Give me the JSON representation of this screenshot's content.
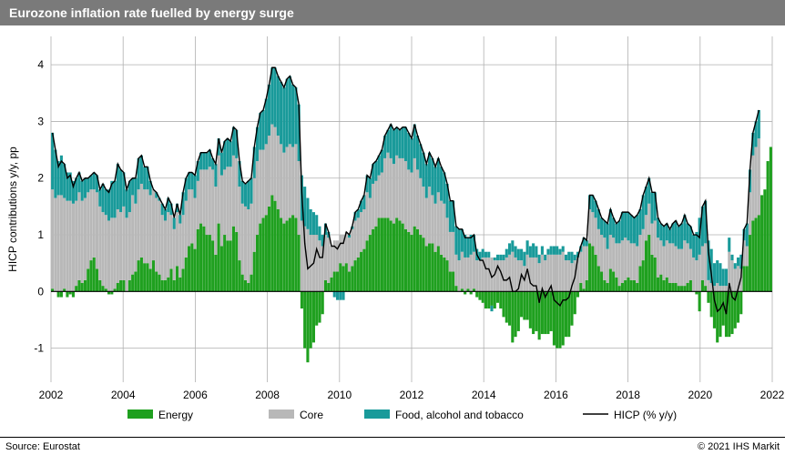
{
  "title": "Eurozone inflation rate fuelled by energy surge",
  "source": "Source: Eurostat",
  "copyright": "© 2021 IHS Markit",
  "chart": {
    "type": "stacked-bar+line",
    "y_axis_label": "HICP contributions y/y, pp",
    "xlim": [
      2002,
      2022
    ],
    "ylim": [
      -1.6,
      4.5
    ],
    "y_ticks": [
      -1,
      0,
      1,
      2,
      3,
      4
    ],
    "x_ticks": [
      2002,
      2004,
      2006,
      2008,
      2010,
      2012,
      2014,
      2016,
      2018,
      2020,
      2022
    ],
    "background_color": "#ffffff",
    "grid_color": "#b0b0b0",
    "title_bg": "#7a7a7a",
    "title_color": "#ffffff",
    "legend_items": [
      {
        "label": "Energy",
        "color": "#1fa01f",
        "kind": "box"
      },
      {
        "label": "Core",
        "color": "#b8b8b8",
        "kind": "box"
      },
      {
        "label": "Food, alcohol and tobacco",
        "color": "#199a9a",
        "kind": "box"
      },
      {
        "label": "HICP (% y/y)",
        "color": "#000000",
        "kind": "line"
      }
    ],
    "start_year": 2002,
    "series": {
      "energy": [
        0.05,
        0.0,
        -0.1,
        -0.1,
        0.05,
        -0.1,
        -0.05,
        -0.1,
        0.1,
        0.2,
        0.15,
        0.2,
        0.4,
        0.55,
        0.6,
        0.4,
        0.2,
        0.1,
        0.05,
        -0.05,
        -0.05,
        0.05,
        0.15,
        0.2,
        0.2,
        0.0,
        0.2,
        0.3,
        0.35,
        0.55,
        0.6,
        0.5,
        0.5,
        0.4,
        0.55,
        0.35,
        0.3,
        0.2,
        0.2,
        0.25,
        0.4,
        0.2,
        0.45,
        0.25,
        0.4,
        0.6,
        0.8,
        0.85,
        0.75,
        1.1,
        1.2,
        1.15,
        1.0,
        1.0,
        0.9,
        0.65,
        1.2,
        0.8,
        1.0,
        0.9,
        0.9,
        1.15,
        1.05,
        0.55,
        0.3,
        0.2,
        0.15,
        0.3,
        0.7,
        1.0,
        1.2,
        1.3,
        1.35,
        1.5,
        1.7,
        1.6,
        1.45,
        1.3,
        1.2,
        1.25,
        1.3,
        1.35,
        1.3,
        1.0,
        -0.3,
        -1.0,
        -1.25,
        -1.0,
        -0.9,
        -0.6,
        -0.55,
        -0.4,
        0.2,
        0.15,
        0.25,
        0.35,
        0.35,
        0.5,
        0.45,
        0.5,
        0.35,
        0.45,
        0.55,
        0.6,
        0.7,
        0.75,
        0.9,
        1.0,
        1.1,
        1.15,
        1.3,
        1.3,
        1.3,
        1.3,
        1.25,
        1.2,
        1.3,
        1.25,
        1.2,
        1.1,
        1.05,
        1.0,
        1.15,
        1.1,
        1.0,
        0.95,
        0.8,
        0.85,
        0.85,
        0.7,
        0.8,
        0.65,
        0.6,
        0.55,
        0.35,
        0.35,
        0.1,
        0.0,
        0.05,
        -0.05,
        0.05,
        -0.05,
        0.05,
        -0.1,
        -0.15,
        -0.2,
        -0.3,
        -0.3,
        -0.25,
        -0.3,
        -0.2,
        -0.3,
        -0.45,
        -0.55,
        -0.6,
        -0.9,
        -0.8,
        -0.7,
        -0.45,
        -0.5,
        -0.5,
        -0.65,
        -0.75,
        -0.7,
        -0.85,
        -0.75,
        -0.75,
        -0.75,
        -0.7,
        -0.95,
        -1.0,
        -1.0,
        -0.95,
        -0.8,
        -0.8,
        -0.6,
        -0.4,
        -0.1,
        0.15,
        0.05,
        0.2,
        0.85,
        0.8,
        0.65,
        0.45,
        0.35,
        0.2,
        0.15,
        0.4,
        0.35,
        0.25,
        0.1,
        0.15,
        0.2,
        0.25,
        0.2,
        0.2,
        0.15,
        0.45,
        0.55,
        0.9,
        1.0,
        0.65,
        0.6,
        0.25,
        0.3,
        0.2,
        0.25,
        0.15,
        0.15,
        0.15,
        0.1,
        0.1,
        0.1,
        0.15,
        0.2,
        0.0,
        -0.05,
        -0.35,
        0.2,
        0.1,
        -0.2,
        -0.45,
        -0.65,
        -0.9,
        -0.8,
        -0.6,
        -0.8,
        -0.8,
        -0.75,
        -0.65,
        -0.55,
        -0.4,
        0.45,
        0.45,
        1.0,
        1.25,
        1.3,
        1.35,
        1.7,
        1.8,
        2.3,
        2.55
      ],
      "core": [
        1.75,
        1.65,
        1.7,
        1.7,
        1.6,
        1.6,
        1.6,
        1.55,
        1.5,
        1.55,
        1.45,
        1.45,
        1.35,
        1.25,
        1.2,
        1.35,
        1.3,
        1.3,
        1.3,
        1.25,
        1.3,
        1.25,
        1.3,
        1.2,
        1.3,
        1.3,
        1.2,
        1.4,
        1.2,
        1.25,
        1.3,
        1.3,
        1.3,
        1.3,
        1.25,
        1.3,
        1.3,
        1.15,
        1.05,
        1.15,
        0.95,
        0.9,
        0.95,
        0.95,
        0.95,
        1.0,
        1.0,
        0.95,
        0.9,
        0.85,
        0.95,
        1.0,
        1.15,
        1.2,
        1.25,
        1.2,
        1.2,
        1.25,
        1.15,
        1.3,
        1.3,
        1.25,
        1.3,
        1.3,
        1.25,
        1.3,
        1.3,
        1.25,
        1.3,
        1.3,
        1.3,
        1.2,
        1.25,
        1.25,
        1.25,
        1.3,
        1.3,
        1.3,
        1.25,
        1.3,
        1.3,
        1.2,
        1.3,
        1.3,
        1.25,
        1.15,
        1.1,
        1.0,
        1.0,
        1.0,
        0.9,
        0.8,
        0.8,
        0.8,
        0.55,
        0.55,
        0.55,
        0.5,
        0.55,
        0.55,
        0.6,
        0.65,
        0.7,
        0.7,
        0.7,
        0.7,
        0.85,
        0.65,
        0.8,
        0.8,
        0.75,
        0.8,
        1.05,
        1.15,
        1.1,
        1.05,
        1.1,
        1.1,
        1.15,
        1.2,
        1.1,
        1.1,
        1.2,
        1.05,
        1.0,
        0.9,
        0.85,
        1.0,
        0.85,
        0.85,
        0.95,
        0.95,
        0.95,
        0.75,
        0.7,
        0.7,
        0.55,
        0.55,
        0.65,
        0.6,
        0.55,
        0.65,
        0.65,
        0.55,
        0.55,
        0.6,
        0.6,
        0.6,
        0.6,
        0.55,
        0.55,
        0.55,
        0.55,
        0.6,
        0.65,
        0.7,
        0.6,
        0.55,
        0.55,
        0.45,
        0.65,
        0.6,
        0.6,
        0.6,
        0.5,
        0.65,
        0.55,
        0.65,
        0.65,
        0.65,
        0.65,
        0.65,
        0.7,
        0.55,
        0.55,
        0.5,
        0.55,
        0.6,
        0.55,
        0.75,
        0.6,
        0.6,
        0.6,
        0.65,
        0.65,
        0.65,
        0.75,
        0.6,
        0.6,
        0.6,
        0.6,
        0.75,
        0.75,
        0.75,
        0.65,
        0.65,
        0.65,
        0.65,
        0.55,
        0.55,
        0.45,
        0.55,
        0.55,
        0.65,
        0.7,
        0.6,
        0.6,
        0.65,
        0.7,
        0.7,
        0.65,
        0.65,
        0.65,
        0.8,
        0.7,
        0.55,
        0.6,
        0.55,
        0.65,
        0.6,
        0.75,
        0.2,
        0.15,
        0.1,
        0.15,
        0.1,
        0.1,
        0.1,
        0.7,
        0.55,
        0.4,
        0.45,
        0.4,
        0.45,
        0.35,
        0.75,
        1.15,
        1.25,
        1.35
      ],
      "food": [
        1.0,
        0.85,
        0.6,
        0.7,
        0.6,
        0.5,
        0.5,
        0.4,
        0.4,
        0.35,
        0.35,
        0.35,
        0.25,
        0.25,
        0.3,
        0.3,
        0.3,
        0.5,
        0.45,
        0.55,
        0.65,
        0.65,
        0.8,
        0.75,
        0.6,
        0.5,
        0.55,
        0.3,
        0.45,
        0.55,
        0.5,
        0.4,
        0.4,
        0.25,
        0.0,
        0.1,
        0.05,
        0.2,
        0.2,
        0.25,
        0.2,
        0.2,
        0.15,
        0.15,
        0.4,
        0.4,
        0.3,
        0.3,
        0.4,
        0.35,
        0.3,
        0.3,
        0.3,
        0.3,
        0.2,
        0.4,
        0.3,
        0.4,
        0.5,
        0.5,
        0.45,
        0.5,
        0.5,
        0.45,
        0.4,
        0.4,
        0.5,
        0.45,
        0.55,
        0.6,
        0.65,
        0.7,
        0.8,
        0.9,
        1.0,
        1.05,
        1.05,
        1.1,
        1.15,
        1.2,
        1.2,
        1.1,
        1.0,
        1.0,
        0.8,
        0.7,
        0.55,
        0.45,
        0.4,
        0.35,
        0.25,
        0.2,
        0.2,
        0.1,
        0.0,
        -0.1,
        -0.15,
        -0.15,
        -0.15,
        0.0,
        0.05,
        0.05,
        0.15,
        0.15,
        0.2,
        0.25,
        0.3,
        0.35,
        0.35,
        0.35,
        0.35,
        0.4,
        0.4,
        0.4,
        0.6,
        0.6,
        0.5,
        0.5,
        0.55,
        0.6,
        0.65,
        0.6,
        0.6,
        0.6,
        0.6,
        0.6,
        0.6,
        0.6,
        0.65,
        0.65,
        0.6,
        0.6,
        0.55,
        0.6,
        0.55,
        0.55,
        0.5,
        0.55,
        0.4,
        0.4,
        0.35,
        0.35,
        0.3,
        0.2,
        0.15,
        0.15,
        0.1,
        0.1,
        -0.1,
        0.05,
        0.1,
        0.1,
        0.1,
        0.15,
        0.2,
        0.2,
        0.2,
        0.2,
        0.2,
        0.25,
        0.25,
        0.2,
        0.25,
        0.2,
        0.15,
        0.15,
        0.1,
        0.1,
        0.15,
        0.15,
        0.15,
        0.1,
        0.1,
        0.1,
        0.15,
        0.2,
        0.1,
        0.1,
        0.1,
        0.15,
        0.1,
        0.25,
        0.3,
        0.3,
        0.35,
        0.3,
        0.3,
        0.45,
        0.45,
        0.35,
        0.35,
        0.4,
        0.5,
        0.45,
        0.5,
        0.5,
        0.45,
        0.55,
        0.45,
        0.6,
        0.5,
        0.45,
        0.55,
        0.5,
        0.35,
        0.3,
        0.35,
        0.3,
        0.25,
        0.35,
        0.45,
        0.4,
        0.45,
        0.45,
        0.35,
        0.4,
        0.4,
        0.5,
        0.65,
        0.7,
        0.75,
        0.7,
        0.6,
        0.4,
        0.4,
        0.4,
        0.3,
        0.3,
        0.25,
        0.1,
        0.1,
        0.15,
        0.25,
        0.2,
        0.4,
        0.4,
        0.4,
        0.45,
        0.5
      ]
    }
  }
}
